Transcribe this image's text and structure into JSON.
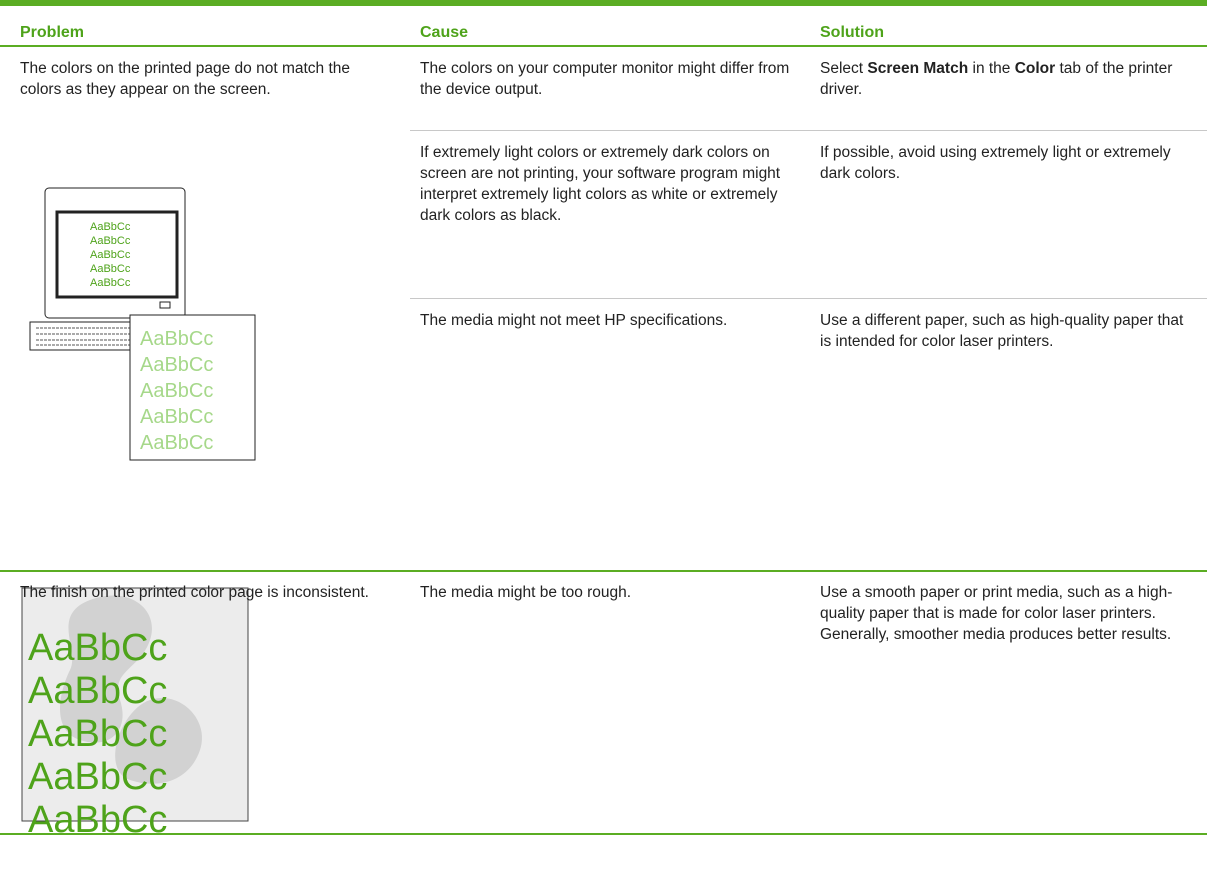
{
  "table": {
    "header": [
      "Problem",
      "Cause",
      "Solution"
    ],
    "rows": [
      {
        "problem": "The colors on the printed page do not match the colors as they appear on the screen.",
        "illustration": {
          "screen": [
            "AaBbCc",
            "AaBbCc",
            "AaBbCc",
            "AaBbCc",
            "AaBbCc"
          ],
          "paper": [
            "AaBbCc",
            "AaBbCc",
            "AaBbCc",
            "AaBbCc",
            "AaBbCc"
          ]
        },
        "causes": [
          {
            "cause": "The colors on your computer monitor might differ from the device output.",
            "solution": [
              "Select ",
              "Screen Match",
              " in the ",
              "Color",
              " tab of the printer driver."
            ]
          },
          {
            "cause": "If extremely light colors or extremely dark colors on screen are not printing, your software program might interpret extremely light colors as white or extremely dark colors as black.",
            "solution": [
              "If possible, avoid using extremely light or extremely dark colors."
            ]
          },
          {
            "cause": "The media might not meet HP specifications.",
            "solution": [
              "Use a different paper, such as high-quality paper that is intended for color laser printers."
            ]
          }
        ]
      },
      {
        "problem": "The finish on the printed color page is inconsistent.",
        "illustration": {
          "paper": [
            "AaBbCc",
            "AaBbCc",
            "AaBbCc",
            "AaBbCc",
            "AaBbCc"
          ]
        },
        "causes": [
          {
            "cause": "The media might be too rough.",
            "solution": [
              "Use a smooth paper or print media, such as a high-quality paper that is made for color laser printers. Generally, smoother media produces better results."
            ]
          }
        ]
      }
    ]
  }
}
